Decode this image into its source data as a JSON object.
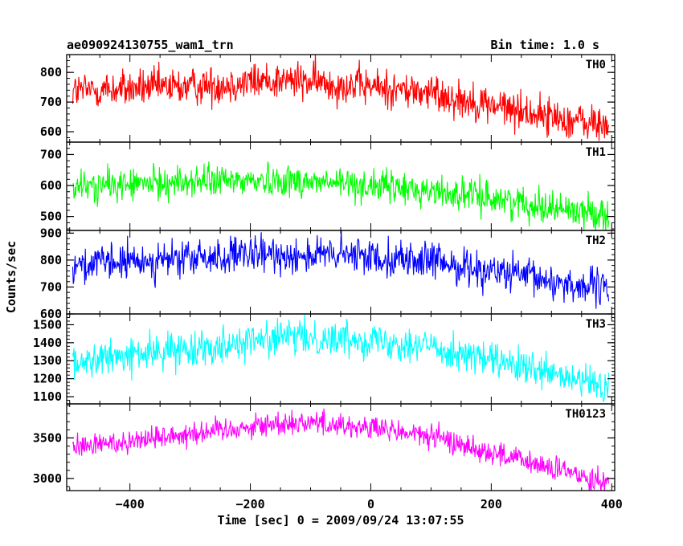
{
  "chart_data": {
    "type": "line",
    "title": "ae090924130755_wam1_trn",
    "bin_time_label": "Bin time: 1.0 s",
    "xlabel": "Time [sec] 0 = 2009/09/24 13:07:55",
    "ylabel": "Counts/sec",
    "xlim": [
      -505,
      405
    ],
    "x_ticks": [
      -400,
      -200,
      0,
      200,
      400
    ],
    "grid": false,
    "bin_time_s": 1.0,
    "panels": [
      {
        "name": "TH0",
        "color": "#ff0000",
        "ylim": [
          565,
          860
        ],
        "y_ticks": [
          600,
          700,
          800
        ],
        "trend": [
          [
            -495,
            738
          ],
          [
            -300,
            752
          ],
          [
            -150,
            775
          ],
          [
            0,
            752
          ],
          [
            100,
            730
          ],
          [
            200,
            690
          ],
          [
            300,
            650
          ],
          [
            395,
            618
          ]
        ],
        "noise": 32
      },
      {
        "name": "TH1",
        "color": "#00ff00",
        "ylim": [
          455,
          740
        ],
        "y_ticks": [
          500,
          600,
          700
        ],
        "trend": [
          [
            -495,
            595
          ],
          [
            -300,
            612
          ],
          [
            -150,
            618
          ],
          [
            0,
            600
          ],
          [
            100,
            582
          ],
          [
            200,
            560
          ],
          [
            300,
            530
          ],
          [
            395,
            505
          ]
        ],
        "noise": 26
      },
      {
        "name": "TH2",
        "color": "#0000ff",
        "ylim": [
          600,
          910
        ],
        "y_ticks": [
          600,
          700,
          800,
          900
        ],
        "trend": [
          [
            -495,
            780
          ],
          [
            -300,
            805
          ],
          [
            -150,
            820
          ],
          [
            0,
            815
          ],
          [
            100,
            795
          ],
          [
            200,
            760
          ],
          [
            300,
            720
          ],
          [
            395,
            690
          ]
        ],
        "noise": 34
      },
      {
        "name": "TH3",
        "color": "#00ffff",
        "ylim": [
          1060,
          1560
        ],
        "y_ticks": [
          1100,
          1200,
          1300,
          1400,
          1500
        ],
        "trend": [
          [
            -495,
            1290
          ],
          [
            -300,
            1370
          ],
          [
            -150,
            1430
          ],
          [
            0,
            1420
          ],
          [
            100,
            1380
          ],
          [
            200,
            1300
          ],
          [
            300,
            1220
          ],
          [
            395,
            1150
          ]
        ],
        "noise": 48
      },
      {
        "name": "TH0123",
        "color": "#ff00ff",
        "ylim": [
          2850,
          3920
        ],
        "y_ticks": [
          3000,
          3500
        ],
        "trend": [
          [
            -495,
            3380
          ],
          [
            -300,
            3560
          ],
          [
            -150,
            3680
          ],
          [
            -100,
            3700
          ],
          [
            0,
            3620
          ],
          [
            100,
            3520
          ],
          [
            200,
            3320
          ],
          [
            300,
            3120
          ],
          [
            395,
            2960
          ]
        ],
        "noise": 75
      }
    ]
  }
}
